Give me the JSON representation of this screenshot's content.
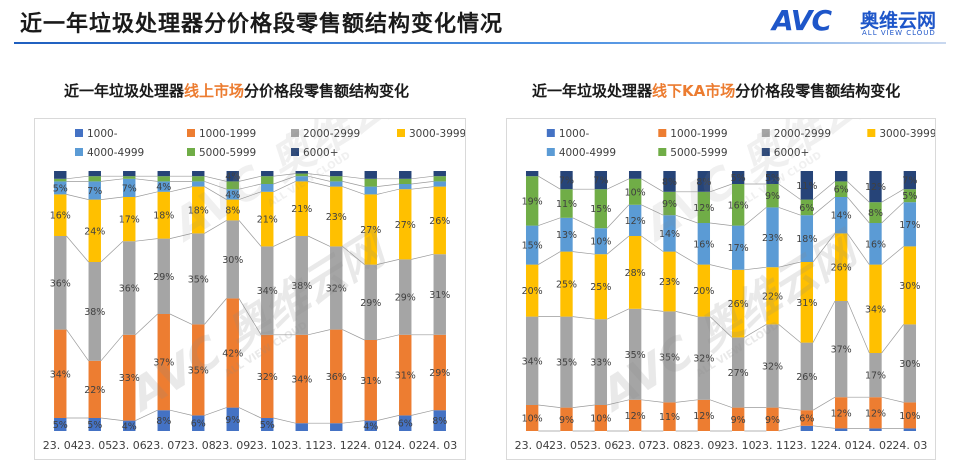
{
  "page": {
    "title": "近一年垃圾处理器分价格段零售额结构变化情况"
  },
  "logo": {
    "mark_a": "AV",
    "mark_c": "C",
    "cn": "奥维云网",
    "en": "ALL VIEW CLOUD"
  },
  "watermark": {
    "mark": "AVC",
    "cn": "奥维云网",
    "en": "ALL VIEW CLOUD"
  },
  "colors": {
    "1000-": "#4472c4",
    "1000-1999": "#ed7d31",
    "2000-2999": "#a5a5a5",
    "3000-3999": "#ffc000",
    "4000-4999": "#5b9bd5",
    "5000-5999": "#70ad47",
    "6000+": "#264478"
  },
  "charts": [
    {
      "heading_pre": "近一年垃圾处理器",
      "heading_hl": "线上市场",
      "heading_post": "分价格段零售额结构变化",
      "label_precision": "%"
    },
    {
      "heading_pre": "近一年垃圾处理器",
      "heading_hl": "线下KA市场",
      "heading_post": "分价格段零售额结构变化",
      "label_precision": "%"
    }
  ],
  "chart_data": [
    {
      "type": "bar",
      "stacked": true,
      "normalized": true,
      "title": "近一年垃圾处理器线上市场分价格段零售额结构变化",
      "categories": [
        "23. 04",
        "23. 05",
        "23. 06",
        "23. 07",
        "23. 08",
        "23. 09",
        "23. 10",
        "23. 11",
        "23. 12",
        "24. 01",
        "24. 02",
        "24. 03"
      ],
      "legend_position": "top",
      "ylim": [
        0,
        100
      ],
      "series": [
        {
          "name": "1000-",
          "values": [
            5,
            5,
            4,
            8,
            6,
            9,
            5,
            3,
            3,
            4,
            6,
            8
          ]
        },
        {
          "name": "1000-1999",
          "values": [
            34,
            22,
            33,
            37,
            35,
            42,
            32,
            34,
            36,
            31,
            31,
            29
          ]
        },
        {
          "name": "2000-2999",
          "values": [
            36,
            38,
            36,
            29,
            35,
            30,
            34,
            38,
            32,
            29,
            29,
            31
          ]
        },
        {
          "name": "3000-3999",
          "values": [
            16,
            24,
            17,
            18,
            18,
            8,
            21,
            21,
            23,
            27,
            27,
            26
          ]
        },
        {
          "name": "4000-4999",
          "values": [
            5,
            7,
            7,
            4,
            2,
            4,
            3,
            2,
            2,
            3,
            2,
            2
          ]
        },
        {
          "name": "5000-5999",
          "values": [
            1,
            2,
            1,
            2,
            2,
            3,
            3,
            1,
            2,
            3,
            2,
            2
          ]
        },
        {
          "name": "6000+",
          "values": [
            3,
            2,
            2,
            2,
            2,
            4,
            2,
            1,
            2,
            3,
            3,
            2
          ]
        }
      ],
      "show_labels_min": 4
    },
    {
      "type": "bar",
      "stacked": true,
      "normalized": true,
      "title": "近一年垃圾处理器线下KA市场分价格段零售额结构变化",
      "categories": [
        "23. 04",
        "23. 05",
        "23. 06",
        "23. 07",
        "23. 08",
        "23. 09",
        "23. 10",
        "23. 11",
        "23. 12",
        "24. 01",
        "24. 02",
        "24. 03"
      ],
      "legend_position": "top",
      "ylim": [
        0,
        100
      ],
      "series": [
        {
          "name": "1000-",
          "values": [
            0,
            0,
            0,
            0,
            0,
            0,
            0,
            0,
            2,
            1,
            1,
            1
          ]
        },
        {
          "name": "1000-1999",
          "values": [
            10,
            9,
            10,
            12,
            11,
            12,
            9,
            9,
            6,
            12,
            12,
            10
          ]
        },
        {
          "name": "2000-2999",
          "values": [
            34,
            35,
            33,
            35,
            35,
            32,
            27,
            32,
            26,
            37,
            17,
            30
          ]
        },
        {
          "name": "3000-3999",
          "values": [
            20,
            25,
            25,
            28,
            23,
            20,
            26,
            22,
            31,
            26,
            34,
            30
          ]
        },
        {
          "name": "4000-4999",
          "values": [
            15,
            13,
            10,
            12,
            14,
            16,
            17,
            23,
            18,
            14,
            16,
            17
          ]
        },
        {
          "name": "5000-5999",
          "values": [
            19,
            11,
            15,
            10,
            9,
            12,
            16,
            9,
            6,
            6,
            8,
            5
          ]
        },
        {
          "name": "6000+",
          "values": [
            2,
            7,
            7,
            3,
            8,
            8,
            5,
            5,
            11,
            4,
            12,
            7
          ]
        }
      ],
      "show_labels_min": 5
    }
  ]
}
